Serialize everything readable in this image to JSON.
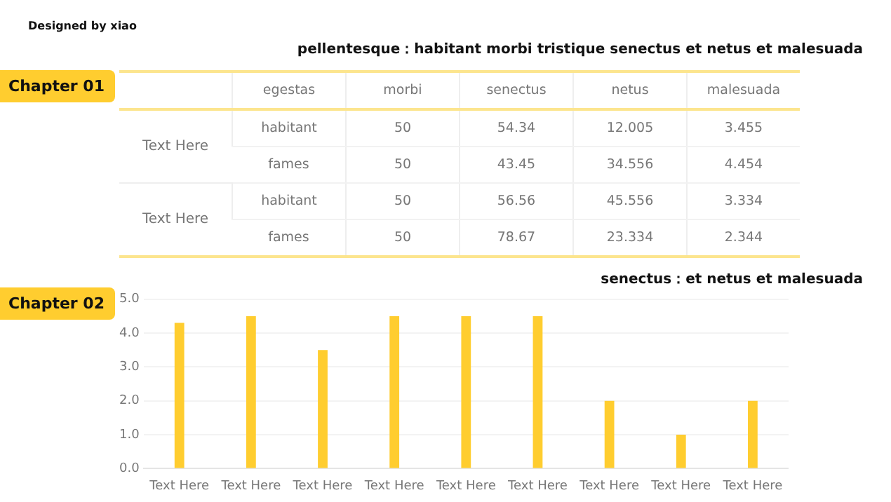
{
  "chart_data": [
    {
      "type": "other",
      "subtitle": "Designed by xiao",
      "title": "pellentesque：habitant morbi tristique senectus et netus et malesuada",
      "annotations": [
        "Chapter 01"
      ],
      "categories": [
        "egestas",
        "morbi",
        "senectus",
        "netus",
        "malesuada"
      ],
      "y_categories": [
        "Text Here",
        null,
        "Text Here",
        null
      ],
      "cell_labels": [
        [
          "habitant",
          "50",
          "54.34",
          "12.005",
          "3.455"
        ],
        [
          "fames",
          "50",
          "43.45",
          "34.556",
          "4.454"
        ],
        [
          "habitant",
          "50",
          "56.56",
          "45.556",
          "3.334"
        ],
        [
          "fames",
          "50",
          "78.67",
          "23.334",
          "2.344"
        ]
      ]
    },
    {
      "type": "bar",
      "title": "senectus：et netus et malesuada",
      "annotations": [
        "Chapter 02"
      ],
      "categories": [
        "Text Here",
        "Text Here",
        "Text Here",
        "Text Here",
        "Text Here",
        "Text Here",
        "Text Here",
        "Text Here",
        "Text Here"
      ],
      "values": [
        4.3,
        4.5,
        3.5,
        4.5,
        4.5,
        4.5,
        2,
        1,
        2
      ],
      "color": "#ffcd2f",
      "ylim": [
        0,
        5
      ],
      "yticks": [
        {
          "value": 0,
          "label": "0.0"
        },
        {
          "value": 1,
          "label": "1.0"
        },
        {
          "value": 2,
          "label": "2.0"
        },
        {
          "value": 3,
          "label": "3.0"
        },
        {
          "value": 4,
          "label": "4.0"
        },
        {
          "value": 5,
          "label": "5.0"
        }
      ],
      "grid": "y"
    }
  ]
}
